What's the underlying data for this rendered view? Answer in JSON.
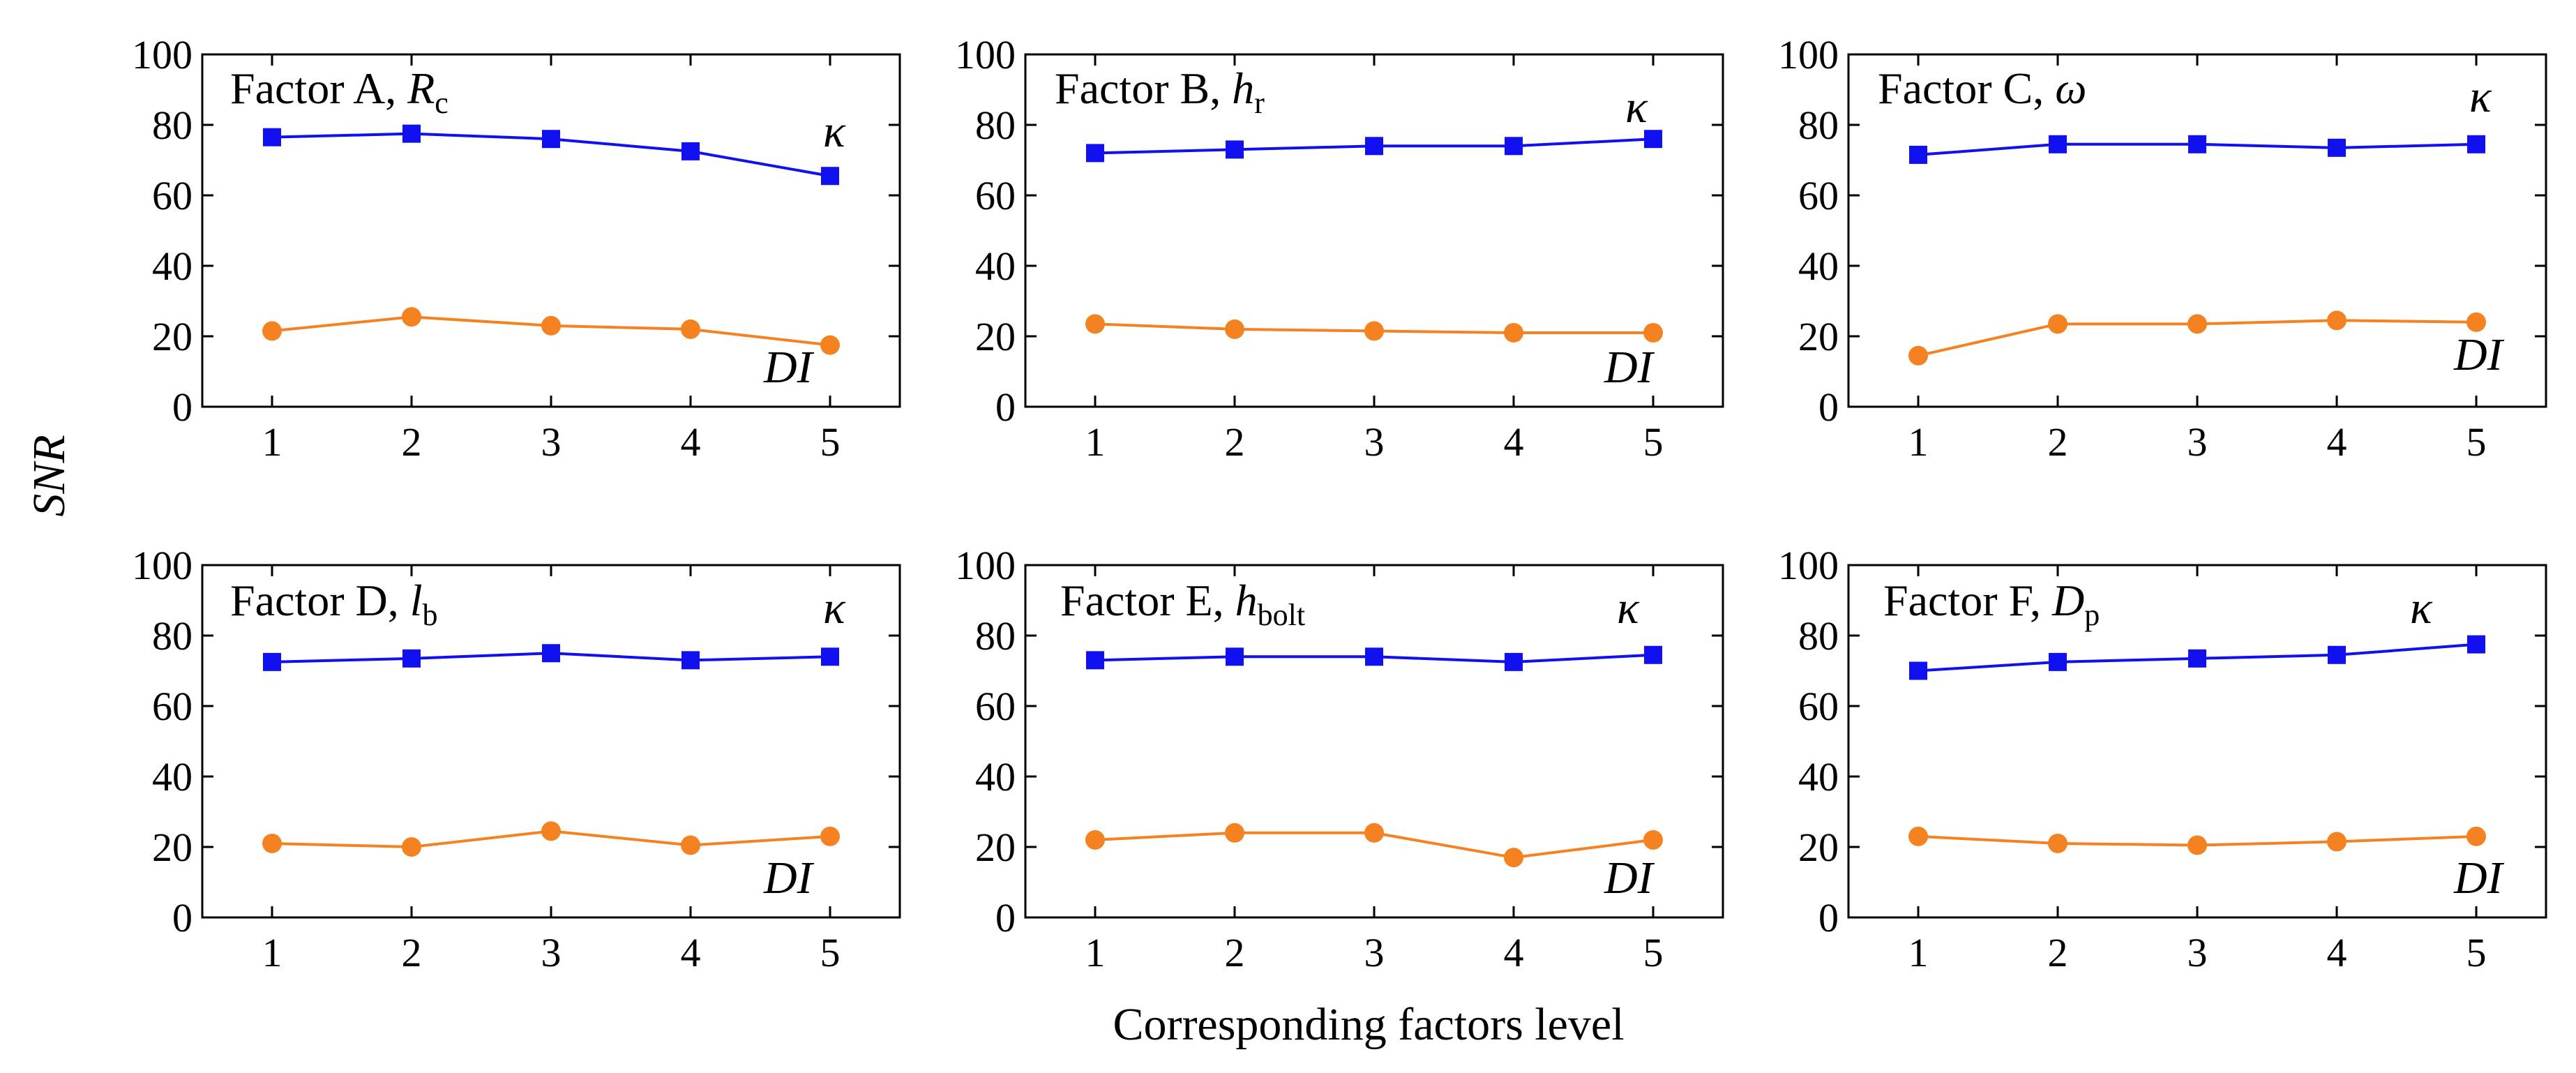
{
  "chart_data": {
    "type": "line",
    "ylabel": "SNR",
    "xlabel": "Corresponding factors level",
    "x": [
      1,
      2,
      3,
      4,
      5
    ],
    "xticks": [
      "1",
      "2",
      "3",
      "4",
      "5"
    ],
    "ylim": [
      0,
      100
    ],
    "yticks": [
      "0",
      "20",
      "40",
      "60",
      "80",
      "100"
    ],
    "series_colors": {
      "kappa": "#1010f0",
      "DI": "#f58220"
    },
    "panels": [
      {
        "title_prefix": "Factor A,",
        "symbol": "R",
        "subscript": "c",
        "series": [
          {
            "name": "κ",
            "marker": "square",
            "values": [
              76.5,
              77.5,
              76,
              72.5,
              65.5
            ]
          },
          {
            "name": "DI",
            "marker": "circle",
            "values": [
              21.5,
              25.5,
              23,
              22,
              17.5
            ]
          }
        ]
      },
      {
        "title_prefix": "Factor B,",
        "symbol": "h",
        "subscript": "r",
        "series": [
          {
            "name": "κ",
            "marker": "square",
            "values": [
              72,
              73,
              74,
              74,
              76
            ]
          },
          {
            "name": "DI",
            "marker": "circle",
            "values": [
              23.5,
              22,
              21.5,
              21,
              21
            ]
          }
        ]
      },
      {
        "title_prefix": "Factor C,",
        "symbol": "ω",
        "subscript": "",
        "series": [
          {
            "name": "κ",
            "marker": "square",
            "values": [
              71.5,
              74.5,
              74.5,
              73.5,
              74.5
            ]
          },
          {
            "name": "DI",
            "marker": "circle",
            "values": [
              14.5,
              23.5,
              23.5,
              24.5,
              24
            ]
          }
        ]
      },
      {
        "title_prefix": "Factor D,",
        "symbol": "l",
        "subscript": "b",
        "series": [
          {
            "name": "κ",
            "marker": "square",
            "values": [
              72.5,
              73.5,
              75,
              73,
              74
            ]
          },
          {
            "name": "DI",
            "marker": "circle",
            "values": [
              21,
              20,
              24.5,
              20.5,
              23
            ]
          }
        ]
      },
      {
        "title_prefix": "Factor E,",
        "symbol": "h",
        "subscript": "bolt",
        "series": [
          {
            "name": "κ",
            "marker": "square",
            "values": [
              73,
              74,
              74,
              72.5,
              74.5
            ]
          },
          {
            "name": "DI",
            "marker": "circle",
            "values": [
              22,
              24,
              24,
              17,
              22
            ]
          }
        ]
      },
      {
        "title_prefix": "Factor F,",
        "symbol": "D",
        "subscript": "p",
        "series": [
          {
            "name": "κ",
            "marker": "square",
            "values": [
              70,
              72.5,
              73.5,
              74.5,
              77.5
            ]
          },
          {
            "name": "DI",
            "marker": "circle",
            "values": [
              23,
              21,
              20.5,
              21.5,
              23
            ]
          }
        ]
      }
    ]
  }
}
